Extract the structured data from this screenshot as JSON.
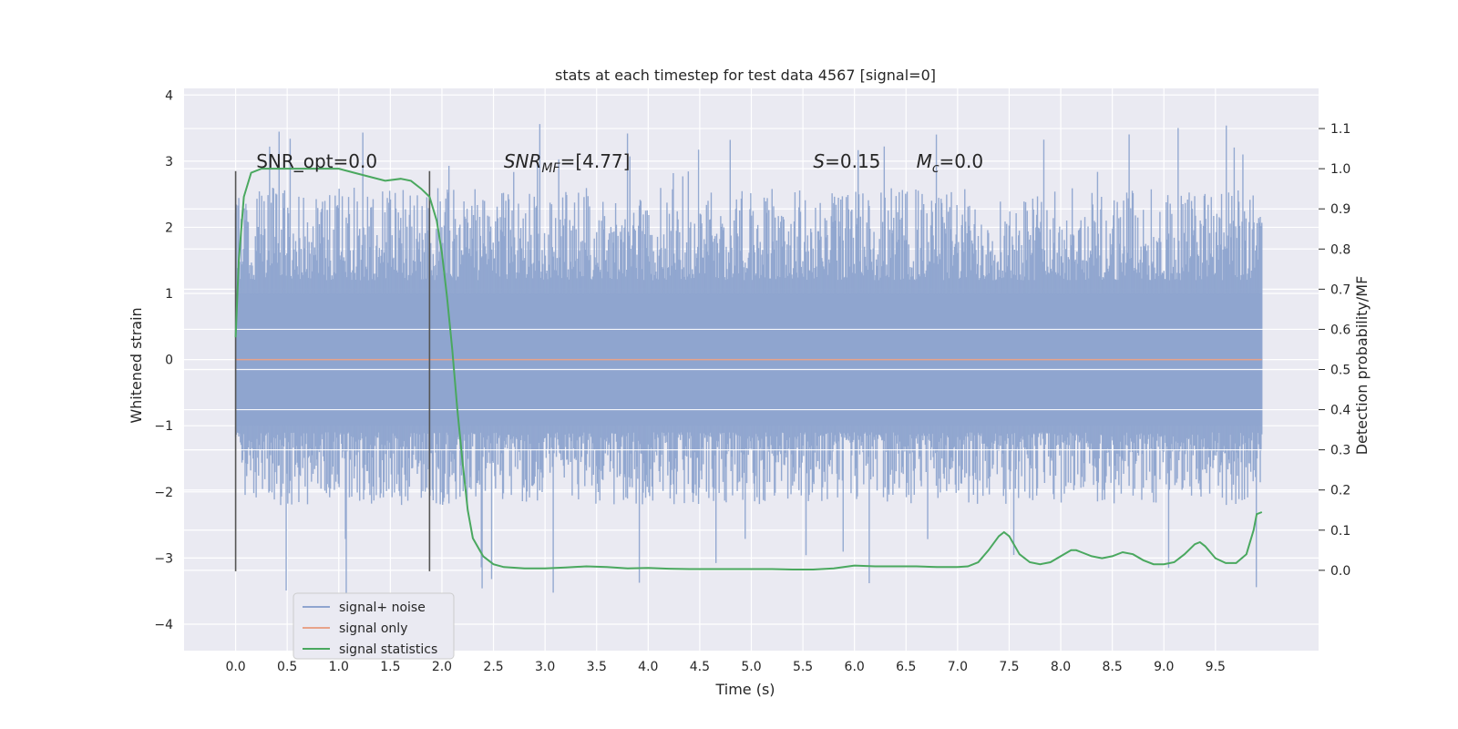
{
  "chart_data": {
    "type": "line",
    "title": "stats at each timestep for test data 4567 [signal=0]",
    "xlabel": "Time (s)",
    "ylabel": "Whitened strain",
    "y2label": "Detection probability/MF",
    "xlim": [
      -0.5,
      10.5
    ],
    "ylim": [
      -4.4,
      4.1
    ],
    "y2lim": [
      -0.2,
      1.2
    ],
    "x_ticks": [
      "0.0",
      "0.5",
      "1.0",
      "1.5",
      "2.0",
      "2.5",
      "3.0",
      "3.5",
      "4.0",
      "4.5",
      "5.0",
      "5.5",
      "6.0",
      "6.5",
      "7.0",
      "7.5",
      "8.0",
      "8.5",
      "9.0",
      "9.5"
    ],
    "y_ticks": [
      "4",
      "3",
      "2",
      "1",
      "0",
      "−1",
      "−2",
      "−3",
      "−4"
    ],
    "y2_ticks": [
      "1.1",
      "1.0",
      "0.9",
      "0.8",
      "0.7",
      "0.6",
      "0.5",
      "0.4",
      "0.3",
      "0.2",
      "0.1",
      "0.0"
    ],
    "grid": true,
    "legend_position": "lower-left",
    "series": [
      {
        "name": "signal+ noise",
        "color": "#8fa5cf",
        "x_range": [
          0.0,
          9.95
        ],
        "typical_range": [
          -1.0,
          1.0
        ],
        "peak_range": [
          -4.05,
          3.68
        ]
      },
      {
        "name": "signal only",
        "color": "#e8a38a",
        "x": [
          0.0,
          9.95
        ],
        "y": [
          0.0,
          0.0
        ]
      },
      {
        "name": "signal statistics",
        "color": "#4aa85f",
        "axis": "right",
        "x": [
          0.0,
          0.03,
          0.08,
          0.15,
          0.25,
          0.4,
          0.6,
          0.8,
          1.0,
          1.15,
          1.3,
          1.45,
          1.6,
          1.7,
          1.8,
          1.88,
          1.95,
          2.0,
          2.05,
          2.1,
          2.15,
          2.2,
          2.25,
          2.3,
          2.4,
          2.5,
          2.6,
          2.8,
          3.0,
          3.2,
          3.4,
          3.6,
          3.8,
          4.0,
          4.2,
          4.4,
          4.6,
          4.8,
          5.0,
          5.2,
          5.4,
          5.6,
          5.8,
          6.0,
          6.2,
          6.4,
          6.6,
          6.8,
          7.0,
          7.1,
          7.2,
          7.3,
          7.4,
          7.45,
          7.5,
          7.6,
          7.7,
          7.8,
          7.9,
          8.0,
          8.1,
          8.15,
          8.2,
          8.3,
          8.4,
          8.5,
          8.6,
          8.7,
          8.8,
          8.9,
          9.0,
          9.1,
          9.2,
          9.3,
          9.35,
          9.4,
          9.5,
          9.6,
          9.7,
          9.8,
          9.87,
          9.9,
          9.95
        ],
        "y": [
          0.58,
          0.77,
          0.93,
          0.99,
          1.0,
          1.0,
          1.0,
          1.0,
          1.0,
          0.99,
          0.98,
          0.97,
          0.975,
          0.97,
          0.95,
          0.93,
          0.87,
          0.79,
          0.68,
          0.55,
          0.4,
          0.27,
          0.15,
          0.08,
          0.035,
          0.015,
          0.008,
          0.005,
          0.005,
          0.007,
          0.01,
          0.008,
          0.005,
          0.006,
          0.004,
          0.003,
          0.003,
          0.003,
          0.003,
          0.003,
          0.002,
          0.002,
          0.005,
          0.012,
          0.01,
          0.01,
          0.01,
          0.008,
          0.008,
          0.01,
          0.02,
          0.05,
          0.085,
          0.095,
          0.085,
          0.04,
          0.02,
          0.015,
          0.02,
          0.035,
          0.05,
          0.05,
          0.045,
          0.035,
          0.03,
          0.035,
          0.045,
          0.04,
          0.025,
          0.015,
          0.015,
          0.02,
          0.04,
          0.065,
          0.07,
          0.06,
          0.03,
          0.018,
          0.018,
          0.04,
          0.1,
          0.14,
          0.145
        ]
      }
    ],
    "vertical_markers": [
      {
        "x": 0.0,
        "ymin": -3.2,
        "ymax": 2.85
      },
      {
        "x": 1.88,
        "ymin": -3.2,
        "ymax": 2.85
      }
    ],
    "annotations": [
      {
        "x": 0.2,
        "y": 2.9,
        "html": "SNR_opt=0.0"
      },
      {
        "x": 2.6,
        "y": 2.9,
        "html": "<tspan font-style='italic'>SNR</tspan><tspan font-style='italic' font-size='14' dy='5'>MF</tspan><tspan dy='-5'>=[4.77]</tspan>"
      },
      {
        "x": 5.6,
        "y": 2.9,
        "html": "<tspan font-style='italic'>S</tspan><tspan>=0.15</tspan>"
      },
      {
        "x": 6.6,
        "y": 2.9,
        "html": "<tspan font-style='italic'>M</tspan><tspan font-style='italic' font-size='14' dy='5'>c</tspan><tspan dy='-5'>=0.0</tspan>"
      }
    ]
  }
}
